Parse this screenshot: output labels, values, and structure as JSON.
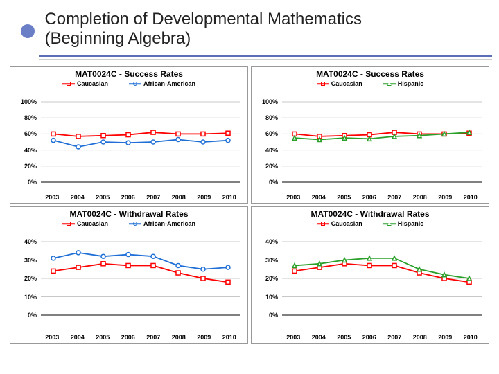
{
  "title_line1": "Completion of Developmental Mathematics",
  "title_line2": "(Beginning Algebra)",
  "bullet_color": "#6b7fc7",
  "rule_color": "#5a6fb5",
  "years": [
    "2003",
    "2004",
    "2005",
    "2006",
    "2007",
    "2008",
    "2009",
    "2010"
  ],
  "colors": {
    "caucasian": "#ff0000",
    "african_american": "#1f6fd6",
    "hispanic": "#2aa02a",
    "grid": "#c8c8c8",
    "axis": "#000000",
    "text": "#000000",
    "bg": "#ffffff"
  },
  "charts": [
    {
      "title": "MAT0024C - Success Rates",
      "ylim": [
        0,
        100
      ],
      "ytick_step": 20,
      "ysuffix": "%",
      "series": [
        {
          "name": "Caucasian",
          "color_key": "caucasian",
          "marker": "square",
          "values": [
            60,
            57,
            58,
            59,
            62,
            60,
            60,
            61
          ]
        },
        {
          "name": "African-American",
          "color_key": "african_american",
          "marker": "circle",
          "values": [
            52,
            44,
            50,
            49,
            50,
            53,
            50,
            52
          ]
        }
      ]
    },
    {
      "title": "MAT0024C - Success Rates",
      "ylim": [
        0,
        100
      ],
      "ytick_step": 20,
      "ysuffix": "%",
      "series": [
        {
          "name": "Caucasian",
          "color_key": "caucasian",
          "marker": "square",
          "values": [
            60,
            57,
            58,
            59,
            62,
            60,
            60,
            61
          ]
        },
        {
          "name": "Hispanic",
          "color_key": "hispanic",
          "marker": "triangle",
          "values": [
            55,
            53,
            55,
            54,
            57,
            58,
            60,
            62
          ]
        }
      ]
    },
    {
      "title": "MAT0024C - Withdrawal Rates",
      "ylim": [
        0,
        40
      ],
      "ytick_step": 10,
      "ysuffix": "%",
      "series": [
        {
          "name": "Caucasian",
          "color_key": "caucasian",
          "marker": "square",
          "values": [
            24,
            26,
            28,
            27,
            27,
            23,
            20,
            18
          ]
        },
        {
          "name": "African-American",
          "color_key": "african_american",
          "marker": "circle",
          "values": [
            31,
            34,
            32,
            33,
            32,
            27,
            25,
            26
          ]
        }
      ]
    },
    {
      "title": "MAT0024C - Withdrawal Rates",
      "ylim": [
        0,
        40
      ],
      "ytick_step": 10,
      "ysuffix": "%",
      "series": [
        {
          "name": "Caucasian",
          "color_key": "caucasian",
          "marker": "square",
          "values": [
            24,
            26,
            28,
            27,
            27,
            23,
            20,
            18
          ]
        },
        {
          "name": "Hispanic",
          "color_key": "hispanic",
          "marker": "triangle",
          "values": [
            27,
            28,
            30,
            31,
            31,
            25,
            22,
            20
          ]
        }
      ]
    }
  ],
  "chart_style": {
    "title_fontsize": 12,
    "label_fontsize": 9,
    "line_width": 1.8,
    "marker_size": 6,
    "plot_bg": "#ffffff"
  }
}
